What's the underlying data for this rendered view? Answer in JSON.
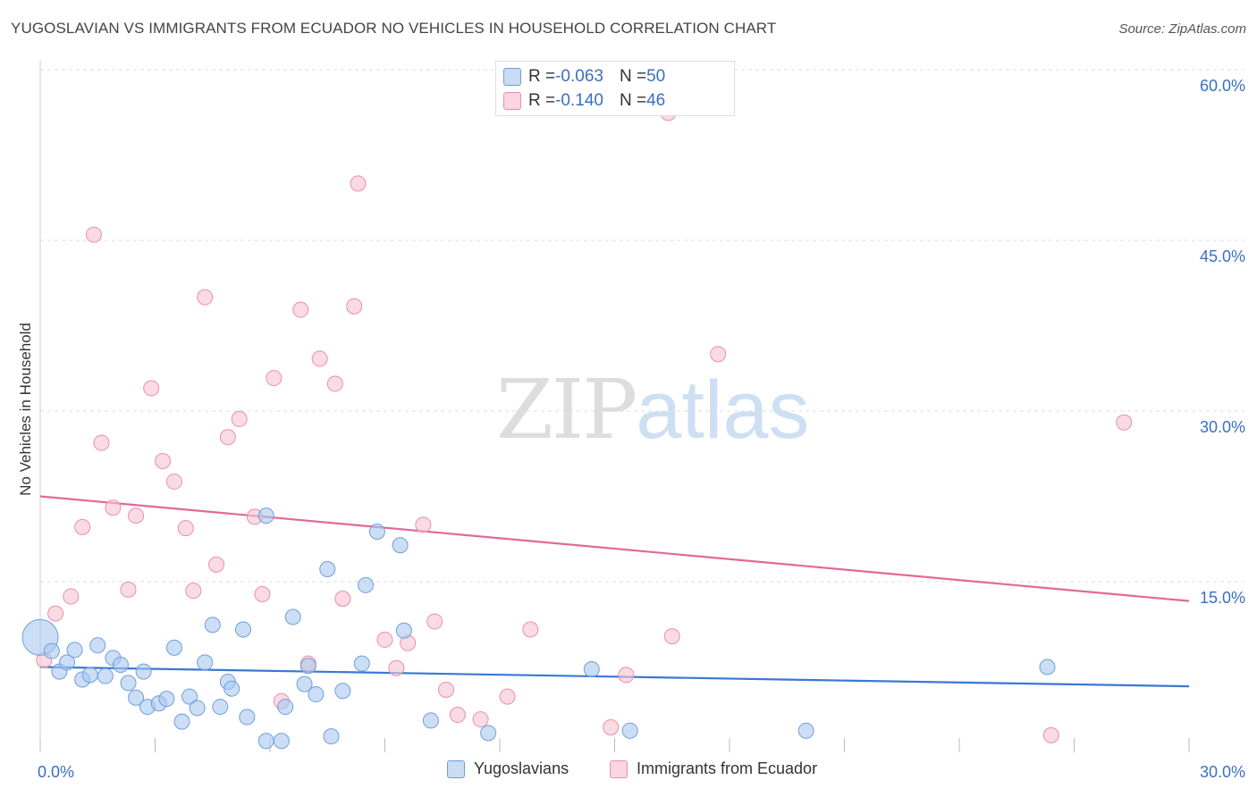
{
  "header": {
    "title": "YUGOSLAVIAN VS IMMIGRANTS FROM ECUADOR NO VEHICLES IN HOUSEHOLD CORRELATION CHART",
    "source": "Source: ZipAtlas.com"
  },
  "watermark": {
    "zip": "ZIP",
    "atlas": "atlas"
  },
  "stats": [
    {
      "r_label": "R = ",
      "r_value": "-0.063",
      "n_label": "N = ",
      "n_value": "50",
      "color": "#a9c8ee"
    },
    {
      "r_label": "R = ",
      "r_value": "-0.140",
      "n_label": "N = ",
      "n_value": "46",
      "color": "#f5b8cb"
    }
  ],
  "colors": {
    "blue_fill": "#a9c8ee",
    "blue_stroke": "#6e9fdc",
    "blue_line": "#3a78d4",
    "pink_fill": "#f7c3d2",
    "pink_stroke": "#e98fab",
    "pink_line": "#e2689a",
    "grid": "#dddddd",
    "tick_label": "#3a6fc4"
  },
  "chart_data": {
    "type": "scatter",
    "title": "YUGOSLAVIAN VS IMMIGRANTS FROM ECUADOR NO VEHICLES IN HOUSEHOLD CORRELATION CHART",
    "xlabel": "",
    "ylabel": "No Vehicles in Household",
    "xlim": [
      0,
      30
    ],
    "ylim": [
      0,
      60
    ],
    "x_tick_labels": [
      "0.0%",
      "30.0%"
    ],
    "y_tick_values": [
      15,
      30,
      45,
      60
    ],
    "y_tick_labels": [
      "15.0%",
      "30.0%",
      "45.0%",
      "60.0%"
    ],
    "grid": true,
    "legend_position": "bottom",
    "series": [
      {
        "name": "Yugoslavians",
        "color": "#a9c8ee",
        "trend": {
          "x": [
            0,
            30
          ],
          "y": [
            7.5,
            5.8
          ]
        },
        "points": [
          {
            "x": 0.0,
            "y": 10.1,
            "size": "large"
          },
          {
            "x": 0.3,
            "y": 8.9
          },
          {
            "x": 0.5,
            "y": 7.1
          },
          {
            "x": 0.7,
            "y": 7.9
          },
          {
            "x": 0.9,
            "y": 9.0
          },
          {
            "x": 1.1,
            "y": 6.4
          },
          {
            "x": 1.3,
            "y": 6.8
          },
          {
            "x": 1.5,
            "y": 9.4
          },
          {
            "x": 1.7,
            "y": 6.7
          },
          {
            "x": 1.9,
            "y": 8.3
          },
          {
            "x": 2.1,
            "y": 7.7
          },
          {
            "x": 2.3,
            "y": 6.1
          },
          {
            "x": 2.5,
            "y": 4.8
          },
          {
            "x": 2.7,
            "y": 7.1
          },
          {
            "x": 2.8,
            "y": 4.0
          },
          {
            "x": 3.1,
            "y": 4.3
          },
          {
            "x": 3.3,
            "y": 4.7
          },
          {
            "x": 3.5,
            "y": 9.2
          },
          {
            "x": 3.7,
            "y": 2.7
          },
          {
            "x": 3.9,
            "y": 4.9
          },
          {
            "x": 4.1,
            "y": 3.9
          },
          {
            "x": 4.3,
            "y": 7.9
          },
          {
            "x": 4.5,
            "y": 11.2
          },
          {
            "x": 4.7,
            "y": 4.0
          },
          {
            "x": 4.9,
            "y": 6.2
          },
          {
            "x": 5.0,
            "y": 5.6
          },
          {
            "x": 5.3,
            "y": 10.8
          },
          {
            "x": 5.4,
            "y": 3.1
          },
          {
            "x": 5.9,
            "y": 20.8
          },
          {
            "x": 5.9,
            "y": 1.0
          },
          {
            "x": 6.3,
            "y": 1.0
          },
          {
            "x": 6.4,
            "y": 4.0
          },
          {
            "x": 6.6,
            "y": 11.9
          },
          {
            "x": 6.9,
            "y": 6.0
          },
          {
            "x": 7.0,
            "y": 7.6
          },
          {
            "x": 7.2,
            "y": 5.1
          },
          {
            "x": 7.5,
            "y": 16.1
          },
          {
            "x": 7.6,
            "y": 1.4
          },
          {
            "x": 7.9,
            "y": 5.4
          },
          {
            "x": 8.4,
            "y": 7.8
          },
          {
            "x": 8.5,
            "y": 14.7
          },
          {
            "x": 8.8,
            "y": 19.4
          },
          {
            "x": 9.4,
            "y": 18.2
          },
          {
            "x": 9.5,
            "y": 10.7
          },
          {
            "x": 10.2,
            "y": 2.8
          },
          {
            "x": 11.7,
            "y": 1.7
          },
          {
            "x": 14.4,
            "y": 7.3
          },
          {
            "x": 15.4,
            "y": 1.9
          },
          {
            "x": 20.0,
            "y": 1.9
          },
          {
            "x": 26.3,
            "y": 7.5
          }
        ]
      },
      {
        "name": "Immigrants from Ecuador",
        "color": "#f5b8cb",
        "trend": {
          "x": [
            0,
            30
          ],
          "y": [
            22.5,
            13.3
          ]
        },
        "points": [
          {
            "x": 0.1,
            "y": 8.1
          },
          {
            "x": 0.4,
            "y": 12.2
          },
          {
            "x": 0.8,
            "y": 13.7
          },
          {
            "x": 1.1,
            "y": 19.8
          },
          {
            "x": 1.4,
            "y": 45.5
          },
          {
            "x": 1.6,
            "y": 27.2
          },
          {
            "x": 1.9,
            "y": 21.5
          },
          {
            "x": 2.3,
            "y": 14.3
          },
          {
            "x": 2.5,
            "y": 20.8
          },
          {
            "x": 2.9,
            "y": 32.0
          },
          {
            "x": 3.2,
            "y": 25.6
          },
          {
            "x": 3.5,
            "y": 23.8
          },
          {
            "x": 3.8,
            "y": 19.7
          },
          {
            "x": 4.0,
            "y": 14.2
          },
          {
            "x": 4.3,
            "y": 40.0
          },
          {
            "x": 4.6,
            "y": 16.5
          },
          {
            "x": 4.9,
            "y": 27.7
          },
          {
            "x": 5.2,
            "y": 29.3
          },
          {
            "x": 5.6,
            "y": 20.7
          },
          {
            "x": 5.8,
            "y": 13.9
          },
          {
            "x": 6.1,
            "y": 32.9
          },
          {
            "x": 6.3,
            "y": 4.5
          },
          {
            "x": 6.8,
            "y": 38.9
          },
          {
            "x": 7.0,
            "y": 7.8
          },
          {
            "x": 7.3,
            "y": 34.6
          },
          {
            "x": 7.7,
            "y": 32.4
          },
          {
            "x": 7.9,
            "y": 13.5
          },
          {
            "x": 8.2,
            "y": 39.2
          },
          {
            "x": 8.3,
            "y": 50.0
          },
          {
            "x": 9.0,
            "y": 9.9
          },
          {
            "x": 9.3,
            "y": 7.4
          },
          {
            "x": 9.6,
            "y": 9.6
          },
          {
            "x": 10.0,
            "y": 20.0
          },
          {
            "x": 10.3,
            "y": 11.5
          },
          {
            "x": 10.6,
            "y": 5.5
          },
          {
            "x": 10.9,
            "y": 3.3
          },
          {
            "x": 11.5,
            "y": 2.9
          },
          {
            "x": 12.2,
            "y": 4.9
          },
          {
            "x": 12.8,
            "y": 10.8
          },
          {
            "x": 14.9,
            "y": 2.2
          },
          {
            "x": 15.3,
            "y": 6.8
          },
          {
            "x": 16.4,
            "y": 56.2
          },
          {
            "x": 16.5,
            "y": 10.2
          },
          {
            "x": 17.7,
            "y": 35.0
          },
          {
            "x": 26.4,
            "y": 1.5
          },
          {
            "x": 28.3,
            "y": 29.0
          }
        ]
      }
    ]
  },
  "legend": {
    "items": [
      {
        "label": "Yugoslavians",
        "color": "#a9c8ee"
      },
      {
        "label": "Immigrants from Ecuador",
        "color": "#f5b8cb"
      }
    ]
  }
}
